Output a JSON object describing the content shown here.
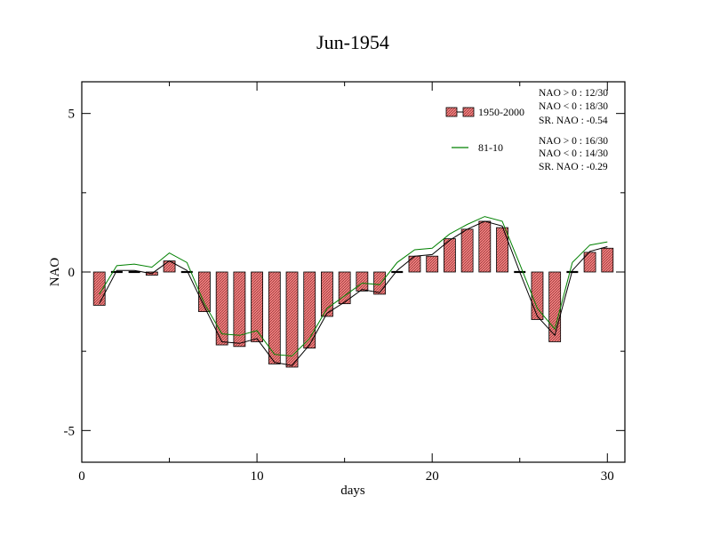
{
  "chart_data": {
    "type": "bar",
    "title": "Jun-1954",
    "xlabel": "days",
    "ylabel": "NAO",
    "xlim": [
      0,
      31
    ],
    "ylim": [
      -6,
      6
    ],
    "x_ticks": [
      0,
      10,
      20,
      30
    ],
    "x_tick_labels": [
      "0",
      "10",
      "20",
      "30"
    ],
    "y_ticks": [
      -5,
      0,
      5
    ],
    "y_tick_labels": [
      "-5",
      "0",
      "5"
    ],
    "days": [
      1,
      2,
      3,
      4,
      5,
      6,
      7,
      8,
      9,
      10,
      11,
      12,
      13,
      14,
      15,
      16,
      17,
      18,
      19,
      20,
      21,
      22,
      23,
      24,
      25,
      26,
      27,
      28,
      29,
      30
    ],
    "series": [
      {
        "name": "1950-2000",
        "kind": "bar",
        "color": "#f08080",
        "values": [
          -1.05,
          0.0,
          0.0,
          -0.1,
          0.35,
          0.03,
          -1.25,
          -2.3,
          -2.35,
          -2.2,
          -2.9,
          -3.0,
          -2.4,
          -1.4,
          -1.0,
          -0.6,
          -0.7,
          0.02,
          0.5,
          0.5,
          1.05,
          1.35,
          1.6,
          1.4,
          0.0,
          -1.5,
          -2.2,
          0.0,
          0.62,
          0.75
        ]
      },
      {
        "name": "",
        "kind": "line",
        "color": "#000000",
        "values": [
          -1.0,
          0.05,
          0.05,
          -0.05,
          0.35,
          0.05,
          -1.1,
          -2.2,
          -2.25,
          -2.1,
          -2.85,
          -2.95,
          -2.3,
          -1.3,
          -0.95,
          -0.55,
          -0.65,
          0.05,
          0.5,
          0.55,
          1.0,
          1.35,
          1.6,
          1.45,
          0.0,
          -1.4,
          -2.0,
          0.05,
          0.65,
          0.8
        ]
      },
      {
        "name": "81-10",
        "kind": "line",
        "color": "#008000",
        "values": [
          -0.7,
          0.2,
          0.25,
          0.15,
          0.6,
          0.3,
          -1.0,
          -1.95,
          -2.0,
          -1.85,
          -2.6,
          -2.65,
          -2.1,
          -1.15,
          -0.75,
          -0.35,
          -0.4,
          0.3,
          0.7,
          0.75,
          1.2,
          1.5,
          1.75,
          1.6,
          0.25,
          -1.15,
          -1.8,
          0.3,
          0.85,
          0.95
        ]
      }
    ],
    "legend_placement": "top-right",
    "annotations": [
      [
        "NAO > 0 : 12/30",
        "NAO < 0 : 18/30",
        "SR. NAO : -0.54"
      ],
      [
        "NAO > 0 : 16/30",
        "NAO < 0 : 14/30",
        "SR. NAO : -0.29"
      ]
    ]
  }
}
